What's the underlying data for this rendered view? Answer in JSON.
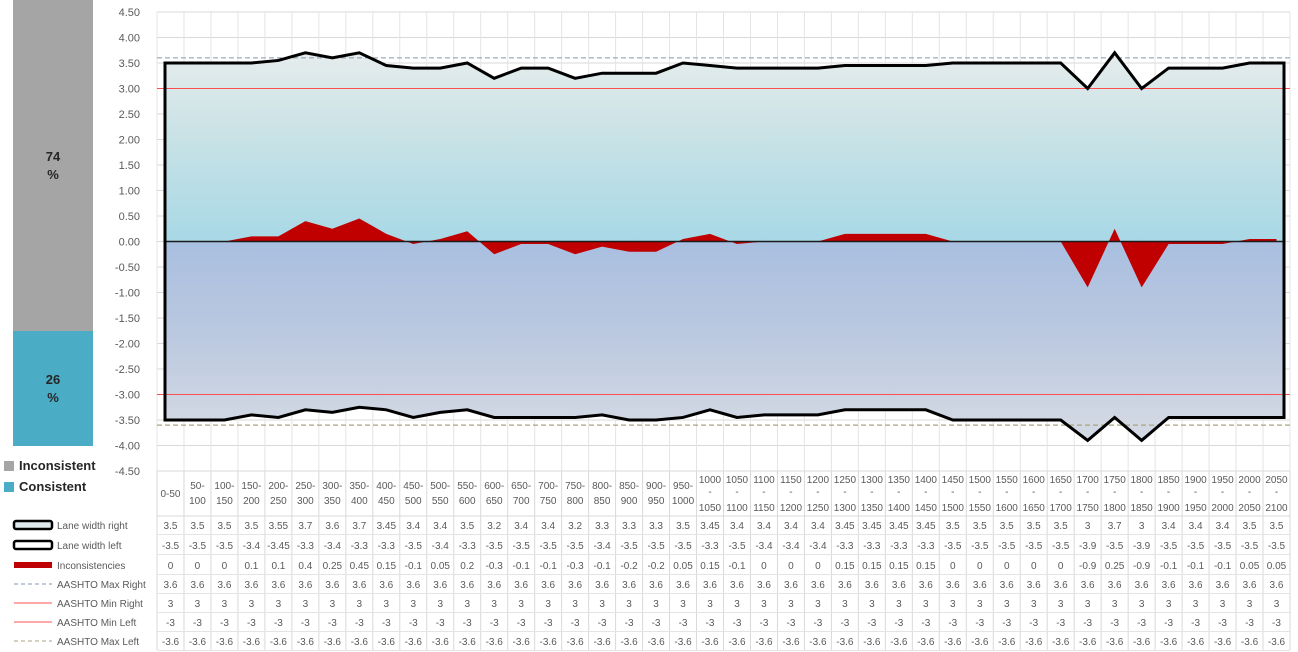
{
  "sidebar": {
    "inconsistent_pct": "74",
    "consistent_pct": "26",
    "pct_sign": "%",
    "legend_inconsistent": "Inconsistent",
    "legend_consistent": "Consistent",
    "colors": {
      "inconsistent": "#a5a5a5",
      "consistent": "#4bacc6"
    }
  },
  "chart_data": {
    "type": "line",
    "y_ticks": [
      "4.50",
      "4.00",
      "3.50",
      "3.00",
      "2.50",
      "2.00",
      "1.50",
      "1.00",
      "0.50",
      "0.00",
      "-0.50",
      "-1.00",
      "-1.50",
      "-2.00",
      "-2.50",
      "-3.00",
      "-3.50",
      "-4.00",
      "-4.50"
    ],
    "ylim": [
      -4.5,
      4.5
    ],
    "grid": true,
    "legend_placement": "data-table",
    "categories": [
      [
        "0-50"
      ],
      [
        "50-",
        "100"
      ],
      [
        "100-",
        "150"
      ],
      [
        "150-",
        "200"
      ],
      [
        "200-",
        "250"
      ],
      [
        "250-",
        "300"
      ],
      [
        "300-",
        "350"
      ],
      [
        "350-",
        "400"
      ],
      [
        "400-",
        "450"
      ],
      [
        "450-",
        "500"
      ],
      [
        "500-",
        "550"
      ],
      [
        "550-",
        "600"
      ],
      [
        "600-",
        "650"
      ],
      [
        "650-",
        "700"
      ],
      [
        "700-",
        "750"
      ],
      [
        "750-",
        "800"
      ],
      [
        "800-",
        "850"
      ],
      [
        "850-",
        "900"
      ],
      [
        "900-",
        "950"
      ],
      [
        "950-",
        "1000"
      ],
      [
        "1000",
        "-",
        "1050"
      ],
      [
        "1050",
        "-",
        "1100"
      ],
      [
        "1100",
        "-",
        "1150"
      ],
      [
        "1150",
        "-",
        "1200"
      ],
      [
        "1200",
        "-",
        "1250"
      ],
      [
        "1250",
        "-",
        "1300"
      ],
      [
        "1300",
        "-",
        "1350"
      ],
      [
        "1350",
        "-",
        "1400"
      ],
      [
        "1400",
        "-",
        "1450"
      ],
      [
        "1450",
        "-",
        "1500"
      ],
      [
        "1500",
        "-",
        "1550"
      ],
      [
        "1550",
        "-",
        "1600"
      ],
      [
        "1600",
        "-",
        "1650"
      ],
      [
        "1650",
        "-",
        "1700"
      ],
      [
        "1700",
        "-",
        "1750"
      ],
      [
        "1750",
        "-",
        "1800"
      ],
      [
        "1800",
        "-",
        "1850"
      ],
      [
        "1850",
        "-",
        "1900"
      ],
      [
        "1900",
        "-",
        "1950"
      ],
      [
        "1950",
        "-",
        "2000"
      ],
      [
        "2000",
        "-",
        "2050"
      ],
      [
        "2050",
        "-",
        "2100"
      ]
    ],
    "series": [
      {
        "name": "Lane width right",
        "style": "thick-outline",
        "color": "#000000",
        "values": [
          3.5,
          3.5,
          3.5,
          3.5,
          3.55,
          3.7,
          3.6,
          3.7,
          3.45,
          3.4,
          3.4,
          3.5,
          3.2,
          3.4,
          3.4,
          3.2,
          3.3,
          3.3,
          3.3,
          3.5,
          3.45,
          3.4,
          3.4,
          3.4,
          3.4,
          3.45,
          3.45,
          3.45,
          3.45,
          3.5,
          3.5,
          3.5,
          3.5,
          3.5,
          3,
          3.7,
          3,
          3.4,
          3.4,
          3.4,
          3.5,
          3.5
        ]
      },
      {
        "name": "Lane width left",
        "style": "thick-outline",
        "color": "#000000",
        "values": [
          -3.5,
          -3.5,
          -3.5,
          -3.4,
          -3.45,
          -3.3,
          -3.35,
          -3.25,
          -3.3,
          -3.45,
          -3.35,
          -3.3,
          -3.45,
          -3.45,
          -3.45,
          -3.45,
          -3.4,
          -3.5,
          -3.5,
          -3.45,
          -3.3,
          -3.45,
          -3.4,
          -3.4,
          -3.4,
          -3.3,
          -3.3,
          -3.3,
          -3.3,
          -3.5,
          -3.5,
          -3.5,
          -3.5,
          -3.5,
          -3.9,
          -3.45,
          -3.9,
          -3.45,
          -3.45,
          -3.45,
          -3.45,
          -3.45
        ]
      },
      {
        "name": "Inconsistencies",
        "style": "area",
        "color": "#c00000",
        "values": [
          0,
          0,
          0,
          0.1,
          0.1,
          0.4,
          0.25,
          0.45,
          0.15,
          -0.05,
          0.05,
          0.2,
          -0.25,
          -0.05,
          -0.05,
          -0.25,
          -0.1,
          -0.2,
          -0.2,
          0.05,
          0.15,
          -0.05,
          0,
          0,
          0,
          0.15,
          0.15,
          0.15,
          0.15,
          0,
          0,
          0,
          0,
          0,
          -0.9,
          0.25,
          -0.9,
          -0.05,
          -0.05,
          -0.05,
          0.05,
          0.05
        ]
      },
      {
        "name": "AASHTO Max Right",
        "style": "dashed",
        "color": "#8497b0",
        "values": [
          3.6,
          3.6,
          3.6,
          3.6,
          3.6,
          3.6,
          3.6,
          3.6,
          3.6,
          3.6,
          3.6,
          3.6,
          3.6,
          3.6,
          3.6,
          3.6,
          3.6,
          3.6,
          3.6,
          3.6,
          3.6,
          3.6,
          3.6,
          3.6,
          3.6,
          3.6,
          3.6,
          3.6,
          3.6,
          3.6,
          3.6,
          3.6,
          3.6,
          3.6,
          3.6,
          3.6,
          3.6,
          3.6,
          3.6,
          3.6,
          3.6,
          3.6
        ]
      },
      {
        "name": "AASHTO Min Right",
        "style": "solid",
        "color": "#ff5050",
        "values": [
          3,
          3,
          3,
          3,
          3,
          3,
          3,
          3,
          3,
          3,
          3,
          3,
          3,
          3,
          3,
          3,
          3,
          3,
          3,
          3,
          3,
          3,
          3,
          3,
          3,
          3,
          3,
          3,
          3,
          3,
          3,
          3,
          3,
          3,
          3,
          3,
          3,
          3,
          3,
          3,
          3,
          3
        ]
      },
      {
        "name": "AASHTO Min Left",
        "style": "solid",
        "color": "#ff5050",
        "values": [
          -3,
          -3,
          -3,
          -3,
          -3,
          -3,
          -3,
          -3,
          -3,
          -3,
          -3,
          -3,
          -3,
          -3,
          -3,
          -3,
          -3,
          -3,
          -3,
          -3,
          -3,
          -3,
          -3,
          -3,
          -3,
          -3,
          -3,
          -3,
          -3,
          -3,
          -3,
          -3,
          -3,
          -3,
          -3,
          -3,
          -3,
          -3,
          -3,
          -3,
          -3,
          -3
        ]
      },
      {
        "name": "AASHTO Max Left",
        "style": "dashed",
        "color": "#a9a57c",
        "values": [
          -3.6,
          -3.6,
          -3.6,
          -3.6,
          -3.6,
          -3.6,
          -3.6,
          -3.6,
          -3.6,
          -3.6,
          -3.6,
          -3.6,
          -3.6,
          -3.6,
          -3.6,
          -3.6,
          -3.6,
          -3.6,
          -3.6,
          -3.6,
          -3.6,
          -3.6,
          -3.6,
          -3.6,
          -3.6,
          -3.6,
          -3.6,
          -3.6,
          -3.6,
          -3.6,
          -3.6,
          -3.6,
          -3.6,
          -3.6,
          -3.6,
          -3.6,
          -3.6,
          -3.6,
          -3.6,
          -3.6,
          -3.6,
          -3.6
        ]
      }
    ],
    "table_rows": [
      [
        "3.5",
        "3.5",
        "3.5",
        "3.5",
        "3.55",
        "3.7",
        "3.6",
        "3.7",
        "3.45",
        "3.4",
        "3.4",
        "3.5",
        "3.2",
        "3.4",
        "3.4",
        "3.2",
        "3.3",
        "3.3",
        "3.3",
        "3.5",
        "3.45",
        "3.4",
        "3.4",
        "3.4",
        "3.4",
        "3.45",
        "3.45",
        "3.45",
        "3.45",
        "3.5",
        "3.5",
        "3.5",
        "3.5",
        "3.5",
        "3",
        "3.7",
        "3",
        "3.4",
        "3.4",
        "3.4",
        "3.5",
        "3.5"
      ],
      [
        "-3.5",
        "-3.5",
        "-3.5",
        "-3.4",
        "-3.45",
        "-3.3",
        "-3.4",
        "-3.3",
        "-3.3",
        "-3.5",
        "-3.4",
        "-3.3",
        "-3.5",
        "-3.5",
        "-3.5",
        "-3.5",
        "-3.4",
        "-3.5",
        "-3.5",
        "-3.5",
        "-3.3",
        "-3.5",
        "-3.4",
        "-3.4",
        "-3.4",
        "-3.3",
        "-3.3",
        "-3.3",
        "-3.3",
        "-3.5",
        "-3.5",
        "-3.5",
        "-3.5",
        "-3.5",
        "-3.9",
        "-3.5",
        "-3.9",
        "-3.5",
        "-3.5",
        "-3.5",
        "-3.5",
        "-3.5"
      ],
      [
        "0",
        "0",
        "0",
        "0.1",
        "0.1",
        "0.4",
        "0.25",
        "0.45",
        "0.15",
        "-0.1",
        "0.05",
        "0.2",
        "-0.3",
        "-0.1",
        "-0.1",
        "-0.3",
        "-0.1",
        "-0.2",
        "-0.2",
        "0.05",
        "0.15",
        "-0.1",
        "0",
        "0",
        "0",
        "0.15",
        "0.15",
        "0.15",
        "0.15",
        "0",
        "0",
        "0",
        "0",
        "0",
        "-0.9",
        "0.25",
        "-0.9",
        "-0.1",
        "-0.1",
        "-0.1",
        "0.05",
        "0.05"
      ],
      [
        "3.6",
        "3.6",
        "3.6",
        "3.6",
        "3.6",
        "3.6",
        "3.6",
        "3.6",
        "3.6",
        "3.6",
        "3.6",
        "3.6",
        "3.6",
        "3.6",
        "3.6",
        "3.6",
        "3.6",
        "3.6",
        "3.6",
        "3.6",
        "3.6",
        "3.6",
        "3.6",
        "3.6",
        "3.6",
        "3.6",
        "3.6",
        "3.6",
        "3.6",
        "3.6",
        "3.6",
        "3.6",
        "3.6",
        "3.6",
        "3.6",
        "3.6",
        "3.6",
        "3.6",
        "3.6",
        "3.6",
        "3.6",
        "3.6"
      ],
      [
        "3",
        "3",
        "3",
        "3",
        "3",
        "3",
        "3",
        "3",
        "3",
        "3",
        "3",
        "3",
        "3",
        "3",
        "3",
        "3",
        "3",
        "3",
        "3",
        "3",
        "3",
        "3",
        "3",
        "3",
        "3",
        "3",
        "3",
        "3",
        "3",
        "3",
        "3",
        "3",
        "3",
        "3",
        "3",
        "3",
        "3",
        "3",
        "3",
        "3",
        "3",
        "3"
      ],
      [
        "-3",
        "-3",
        "-3",
        "-3",
        "-3",
        "-3",
        "-3",
        "-3",
        "-3",
        "-3",
        "-3",
        "-3",
        "-3",
        "-3",
        "-3",
        "-3",
        "-3",
        "-3",
        "-3",
        "-3",
        "-3",
        "-3",
        "-3",
        "-3",
        "-3",
        "-3",
        "-3",
        "-3",
        "-3",
        "-3",
        "-3",
        "-3",
        "-3",
        "-3",
        "-3",
        "-3",
        "-3",
        "-3",
        "-3",
        "-3",
        "-3",
        "-3"
      ],
      [
        "-3.6",
        "-3.6",
        "-3.6",
        "-3.6",
        "-3.6",
        "-3.6",
        "-3.6",
        "-3.6",
        "-3.6",
        "-3.6",
        "-3.6",
        "-3.6",
        "-3.6",
        "-3.6",
        "-3.6",
        "-3.6",
        "-3.6",
        "-3.6",
        "-3.6",
        "-3.6",
        "-3.6",
        "-3.6",
        "-3.6",
        "-3.6",
        "-3.6",
        "-3.6",
        "-3.6",
        "-3.6",
        "-3.6",
        "-3.6",
        "-3.6",
        "-3.6",
        "-3.6",
        "-3.6",
        "-3.6",
        "-3.6",
        "-3.6",
        "-3.6",
        "-3.6",
        "-3.6",
        "-3.6",
        "-3.6"
      ]
    ]
  }
}
